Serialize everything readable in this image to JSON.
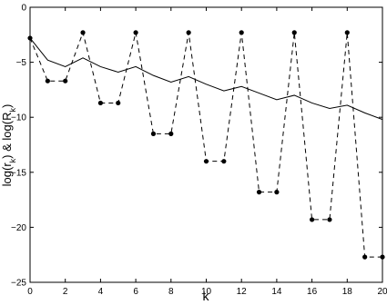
{
  "chart_data": {
    "type": "line",
    "xlabel": "k",
    "ylabel": [
      "log(r",
      "k",
      ") & log(R",
      "k",
      ")"
    ],
    "x": [
      0,
      1,
      2,
      3,
      4,
      5,
      6,
      7,
      8,
      9,
      10,
      11,
      12,
      13,
      14,
      15,
      16,
      17,
      18,
      19,
      20
    ],
    "series": [
      {
        "color": "#000000",
        "dash": "solid",
        "markers": false,
        "values": [
          -2.8,
          -4.8,
          -5.4,
          -4.6,
          -5.4,
          -5.9,
          -5.4,
          -6.2,
          -6.8,
          -6.3,
          -7.0,
          -7.6,
          -7.2,
          -7.8,
          -8.4,
          -8.0,
          -8.7,
          -9.2,
          -8.9,
          -9.6,
          -10.2
        ]
      },
      {
        "color": "#000000",
        "dash": "dashed",
        "markers": true,
        "values": [
          -2.8,
          -6.7,
          -6.7,
          -2.3,
          -8.7,
          -8.7,
          -2.3,
          -11.5,
          -11.5,
          -2.3,
          -14.0,
          -14.0,
          -2.3,
          -16.8,
          -16.8,
          -2.3,
          -19.3,
          -19.3,
          -2.3,
          -22.7,
          -22.7
        ]
      }
    ],
    "xlim": [
      0,
      20
    ],
    "xticks": [
      0,
      2,
      4,
      6,
      8,
      10,
      12,
      14,
      16,
      18,
      20
    ],
    "ylim": [
      -25,
      0
    ],
    "yticks": [
      {
        "value": -25,
        "label": "−25"
      },
      {
        "value": -20,
        "label": "−20"
      },
      {
        "value": -15,
        "label": "−15"
      },
      {
        "value": -10,
        "label": "−10"
      },
      {
        "value": -5,
        "label": "−5"
      },
      0
    ]
  }
}
